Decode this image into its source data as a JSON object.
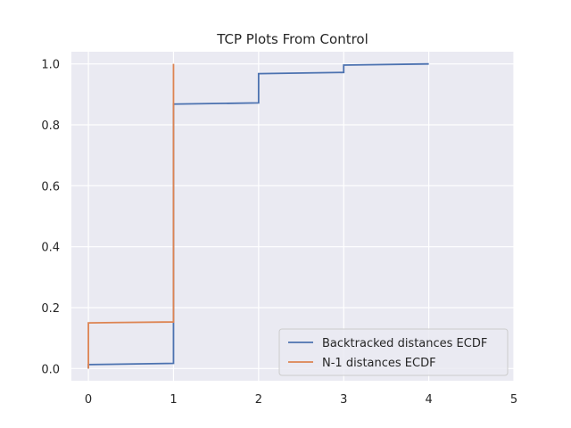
{
  "chart_data": {
    "type": "line",
    "title": "TCP Plots From Control",
    "xlabel": "",
    "ylabel": "",
    "xlim": [
      -0.2,
      5.0
    ],
    "ylim": [
      -0.04,
      1.04
    ],
    "xticks": [
      0,
      1,
      2,
      3,
      4,
      5
    ],
    "yticks": [
      0.0,
      0.2,
      0.4,
      0.6,
      0.8,
      1.0
    ],
    "xtick_labels": [
      "0",
      "1",
      "2",
      "3",
      "4",
      "5"
    ],
    "ytick_labels": [
      "0.0",
      "0.2",
      "0.4",
      "0.6",
      "0.8",
      "1.0"
    ],
    "grid": true,
    "background": "#eaeaf2",
    "legend_position": "lower-right",
    "series": [
      {
        "name": "Backtracked distances ECDF",
        "color": "#4c72b0",
        "x": [
          0,
          0,
          1,
          1,
          2,
          2,
          3,
          3,
          4
        ],
        "y": [
          0.0,
          0.013,
          0.017,
          0.868,
          0.872,
          0.968,
          0.972,
          0.996,
          1.0
        ]
      },
      {
        "name": "N-1 distances ECDF",
        "color": "#dd8452",
        "x": [
          0,
          0,
          1,
          1
        ],
        "y": [
          0.0,
          0.15,
          0.153,
          1.0
        ]
      }
    ]
  }
}
